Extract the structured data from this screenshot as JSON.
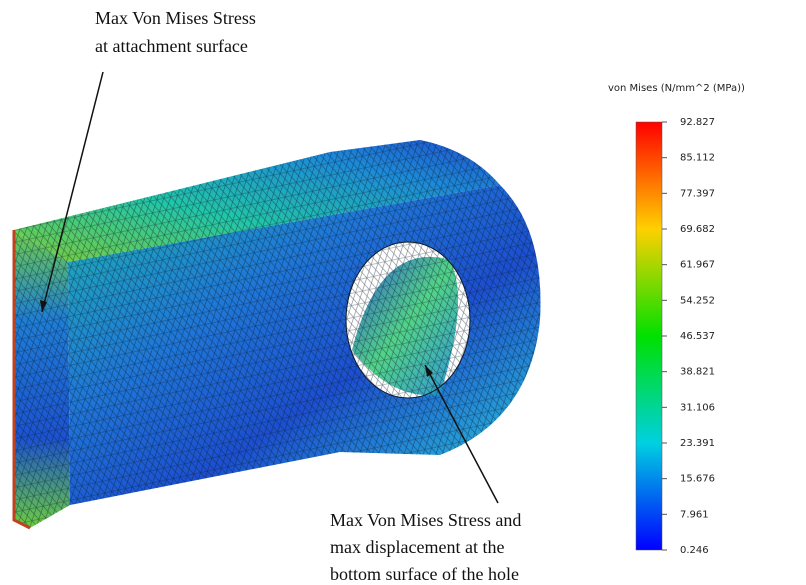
{
  "annotations": {
    "top": [
      "Max Von Mises Stress",
      "at attachment surface"
    ],
    "bottom": [
      "Max Von Mises Stress and",
      "max displacement at the",
      "bottom surface of the hole"
    ]
  },
  "legend": {
    "title": "von Mises (N/mm^2 (MPa))",
    "labels": [
      "92.827",
      "85.112",
      "77.397",
      "69.682",
      "61.967",
      "54.252",
      "46.537",
      "38.821",
      "31.106",
      "23.391",
      "15.676",
      "7.961",
      "0.246"
    ]
  }
}
